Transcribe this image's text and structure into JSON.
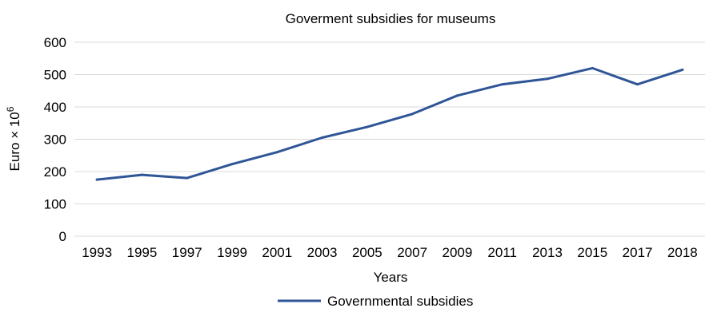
{
  "chart_data": {
    "type": "line",
    "title": "Goverment subsidies for museums",
    "xlabel": "Years",
    "ylabel_base": "Euro × 10",
    "ylabel_exponent": "6",
    "categories": [
      "1993",
      "1995",
      "1997",
      "1999",
      "2001",
      "2003",
      "2005",
      "2007",
      "2009",
      "2011",
      "2013",
      "2015",
      "2017",
      "2018"
    ],
    "series": [
      {
        "name": "Governmental subsidies",
        "color": "#2f5597",
        "values": [
          175,
          190,
          180,
          223,
          260,
          305,
          338,
          378,
          435,
          470,
          487,
          520,
          470,
          515
        ]
      }
    ],
    "ylim": [
      0,
      600
    ],
    "yticks": [
      0,
      100,
      200,
      300,
      400,
      500,
      600
    ],
    "grid": true,
    "legend_position": "bottom"
  }
}
